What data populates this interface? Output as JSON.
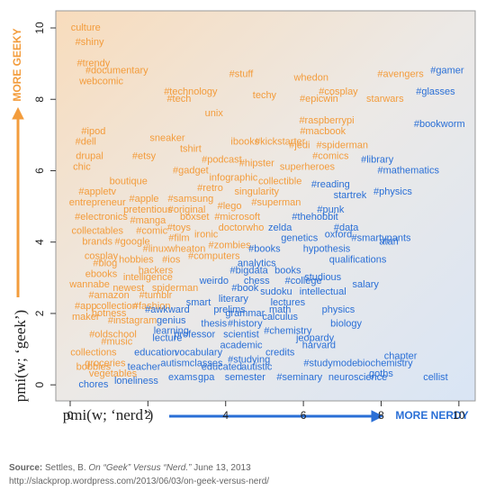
{
  "chart_data": {
    "type": "scatter",
    "ylabel": "pmi(w; ‘geek’)",
    "xlabel": "pmi(w; ‘nerd’)",
    "y_direction": "MORE GEEKY",
    "y_direction_color": "#f39c3c",
    "x_direction": "MORE NERDY",
    "x_direction_color": "#2a6fd6",
    "xlim": [
      -0.37,
      10.42
    ],
    "ylim": [
      -0.45,
      10.48
    ],
    "xticks": [
      0,
      2,
      4,
      6,
      8,
      10
    ],
    "yticks": [
      0,
      2,
      4,
      6,
      8,
      10
    ],
    "series": [
      {
        "color": "#f39c3c",
        "points": [
          {
            "label": "culture",
            "x": 0.4,
            "y": 10.0
          },
          {
            "label": "#shiny",
            "x": 0.5,
            "y": 9.6
          },
          {
            "label": "#trendy",
            "x": 0.6,
            "y": 9.0
          },
          {
            "label": "#documentary",
            "x": 1.2,
            "y": 8.8
          },
          {
            "label": "webcomic",
            "x": 0.8,
            "y": 8.5
          },
          {
            "label": "#stuff",
            "x": 4.4,
            "y": 8.7
          },
          {
            "label": "whedon",
            "x": 6.2,
            "y": 8.6
          },
          {
            "label": "#avengers",
            "x": 8.5,
            "y": 8.7
          },
          {
            "label": "#technology",
            "x": 3.1,
            "y": 8.2
          },
          {
            "label": "#tech",
            "x": 2.8,
            "y": 8.0
          },
          {
            "label": "techy",
            "x": 5.0,
            "y": 8.1
          },
          {
            "label": "#cosplay",
            "x": 6.9,
            "y": 8.2
          },
          {
            "label": "#epicwin",
            "x": 6.4,
            "y": 8.0
          },
          {
            "label": "starwars",
            "x": 8.1,
            "y": 8.0
          },
          {
            "label": "unix",
            "x": 3.7,
            "y": 7.6
          },
          {
            "label": "#raspberrypi",
            "x": 6.6,
            "y": 7.4
          },
          {
            "label": "#macbook",
            "x": 6.5,
            "y": 7.1
          },
          {
            "label": "#ipod",
            "x": 0.6,
            "y": 7.1
          },
          {
            "label": "#dell",
            "x": 0.4,
            "y": 6.8
          },
          {
            "label": "sneaker",
            "x": 2.5,
            "y": 6.9
          },
          {
            "label": "ibooks",
            "x": 4.5,
            "y": 6.8
          },
          {
            "label": "tshirt",
            "x": 3.1,
            "y": 6.6
          },
          {
            "label": "#kickstarter",
            "x": 5.4,
            "y": 6.8
          },
          {
            "label": "#jedi",
            "x": 5.9,
            "y": 6.7
          },
          {
            "label": "#spiderman",
            "x": 7.0,
            "y": 6.7
          },
          {
            "label": "drupal",
            "x": 0.5,
            "y": 6.4
          },
          {
            "label": "#etsy",
            "x": 1.9,
            "y": 6.4
          },
          {
            "label": "#podcast",
            "x": 3.9,
            "y": 6.3
          },
          {
            "label": "#comics",
            "x": 6.7,
            "y": 6.4
          },
          {
            "label": "#hipster",
            "x": 4.8,
            "y": 6.2
          },
          {
            "label": "superheroes",
            "x": 6.1,
            "y": 6.1
          },
          {
            "label": "chic",
            "x": 0.3,
            "y": 6.1
          },
          {
            "label": "#gadget",
            "x": 3.1,
            "y": 6.0
          },
          {
            "label": "boutique",
            "x": 1.5,
            "y": 5.7
          },
          {
            "label": "infographic",
            "x": 4.2,
            "y": 5.8
          },
          {
            "label": "collectible",
            "x": 5.4,
            "y": 5.7
          },
          {
            "label": "#retro",
            "x": 3.6,
            "y": 5.5
          },
          {
            "label": "#appletv",
            "x": 0.7,
            "y": 5.4
          },
          {
            "label": "#apple",
            "x": 1.9,
            "y": 5.2
          },
          {
            "label": "#samsung",
            "x": 3.1,
            "y": 5.2
          },
          {
            "label": "singularity",
            "x": 4.8,
            "y": 5.4
          },
          {
            "label": "#superman",
            "x": 5.3,
            "y": 5.1
          },
          {
            "label": "entrepreneur",
            "x": 0.7,
            "y": 5.1
          },
          {
            "label": "pretentious",
            "x": 2.0,
            "y": 4.9
          },
          {
            "label": "#lego",
            "x": 4.1,
            "y": 5.0
          },
          {
            "label": "#original",
            "x": 3.0,
            "y": 4.9
          },
          {
            "label": "#electronics",
            "x": 0.8,
            "y": 4.7
          },
          {
            "label": "#manga",
            "x": 2.0,
            "y": 4.6
          },
          {
            "label": "boxset",
            "x": 3.2,
            "y": 4.7
          },
          {
            "label": "#microsoft",
            "x": 4.3,
            "y": 4.7
          },
          {
            "label": "#toys",
            "x": 2.8,
            "y": 4.4
          },
          {
            "label": "#comic",
            "x": 2.1,
            "y": 4.3
          },
          {
            "label": "doctorwho",
            "x": 4.4,
            "y": 4.4
          },
          {
            "label": "collectables",
            "x": 0.7,
            "y": 4.3
          },
          {
            "label": "ironic",
            "x": 3.5,
            "y": 4.2
          },
          {
            "label": "#film",
            "x": 2.8,
            "y": 4.1
          },
          {
            "label": "#google",
            "x": 1.6,
            "y": 4.0
          },
          {
            "label": "brands",
            "x": 0.7,
            "y": 4.0
          },
          {
            "label": "#linux",
            "x": 2.2,
            "y": 3.8
          },
          {
            "label": "wheaton",
            "x": 3.0,
            "y": 3.8
          },
          {
            "label": "#zombies",
            "x": 4.1,
            "y": 3.9
          },
          {
            "label": "cosplay",
            "x": 0.8,
            "y": 3.6
          },
          {
            "label": "#ios",
            "x": 2.6,
            "y": 3.5
          },
          {
            "label": "#computers",
            "x": 3.7,
            "y": 3.6
          },
          {
            "label": "#blog",
            "x": 0.9,
            "y": 3.4
          },
          {
            "label": "hobbies",
            "x": 1.7,
            "y": 3.5
          },
          {
            "label": "hackers",
            "x": 2.2,
            "y": 3.2
          },
          {
            "label": "ebooks",
            "x": 0.8,
            "y": 3.1
          },
          {
            "label": "intelligence",
            "x": 2.0,
            "y": 3.0
          },
          {
            "label": "wannabe",
            "x": 0.5,
            "y": 2.8
          },
          {
            "label": "newest",
            "x": 1.5,
            "y": 2.7
          },
          {
            "label": "spiderman",
            "x": 2.7,
            "y": 2.7
          },
          {
            "label": "#amazon",
            "x": 1.0,
            "y": 2.5
          },
          {
            "label": "#tumblr",
            "x": 2.2,
            "y": 2.5
          },
          {
            "label": "#app",
            "x": 0.4,
            "y": 2.2
          },
          {
            "label": "collection",
            "x": 1.2,
            "y": 2.2
          },
          {
            "label": "#fashion",
            "x": 2.1,
            "y": 2.2
          },
          {
            "label": "hotness",
            "x": 1.0,
            "y": 2.0
          },
          {
            "label": "maker",
            "x": 0.4,
            "y": 1.9
          },
          {
            "label": "#instagram",
            "x": 1.6,
            "y": 1.8
          },
          {
            "label": "#oldschool",
            "x": 1.1,
            "y": 1.4
          },
          {
            "label": "#music",
            "x": 1.2,
            "y": 1.2
          },
          {
            "label": "collections",
            "x": 0.6,
            "y": 0.9
          },
          {
            "label": "groceries",
            "x": 0.9,
            "y": 0.6
          },
          {
            "label": "bobbies",
            "x": 0.6,
            "y": 0.5
          },
          {
            "label": "vegetables",
            "x": 1.1,
            "y": 0.3
          }
        ]
      },
      {
        "color": "#2a6fd6",
        "points": [
          {
            "label": "#gamer",
            "x": 9.7,
            "y": 8.8
          },
          {
            "label": "#glasses",
            "x": 9.4,
            "y": 8.2
          },
          {
            "label": "#bookworm",
            "x": 9.5,
            "y": 7.3
          },
          {
            "label": "#library",
            "x": 7.9,
            "y": 6.3
          },
          {
            "label": "#mathematics",
            "x": 8.7,
            "y": 6.0
          },
          {
            "label": "#reading",
            "x": 6.7,
            "y": 5.6
          },
          {
            "label": "#physics",
            "x": 8.3,
            "y": 5.4
          },
          {
            "label": "startrek",
            "x": 7.2,
            "y": 5.3
          },
          {
            "label": "#punk",
            "x": 6.7,
            "y": 4.9
          },
          {
            "label": "#thehobbit",
            "x": 6.3,
            "y": 4.7
          },
          {
            "label": "zelda",
            "x": 5.4,
            "y": 4.4
          },
          {
            "label": "#data",
            "x": 7.1,
            "y": 4.4
          },
          {
            "label": "#smartypants",
            "x": 8.0,
            "y": 4.1
          },
          {
            "label": "genetics",
            "x": 5.9,
            "y": 4.1
          },
          {
            "label": "atari",
            "x": 8.2,
            "y": 4.0
          },
          {
            "label": "oxford",
            "x": 6.9,
            "y": 4.2
          },
          {
            "label": "hypothesis",
            "x": 6.6,
            "y": 3.8
          },
          {
            "label": "#books",
            "x": 5.0,
            "y": 3.8
          },
          {
            "label": "qualifications",
            "x": 7.4,
            "y": 3.5
          },
          {
            "label": "analytics",
            "x": 4.8,
            "y": 3.4
          },
          {
            "label": "#bigdata",
            "x": 4.6,
            "y": 3.2
          },
          {
            "label": "books",
            "x": 5.6,
            "y": 3.2
          },
          {
            "label": "studious",
            "x": 6.5,
            "y": 3.0
          },
          {
            "label": "weirdo",
            "x": 3.7,
            "y": 2.9
          },
          {
            "label": "chess",
            "x": 4.8,
            "y": 2.9
          },
          {
            "label": "#college",
            "x": 6.0,
            "y": 2.9
          },
          {
            "label": "#book",
            "x": 4.5,
            "y": 2.7
          },
          {
            "label": "salary",
            "x": 7.6,
            "y": 2.8
          },
          {
            "label": "sudoku",
            "x": 5.3,
            "y": 2.6
          },
          {
            "label": "intellectual",
            "x": 6.5,
            "y": 2.6
          },
          {
            "label": "literary",
            "x": 4.2,
            "y": 2.4
          },
          {
            "label": "lectures",
            "x": 5.6,
            "y": 2.3
          },
          {
            "label": "smart",
            "x": 3.3,
            "y": 2.3
          },
          {
            "label": "prelims",
            "x": 4.1,
            "y": 2.1
          },
          {
            "label": "#awkward",
            "x": 2.5,
            "y": 2.1
          },
          {
            "label": "grammar",
            "x": 4.5,
            "y": 2.0
          },
          {
            "label": "math",
            "x": 5.4,
            "y": 2.1
          },
          {
            "label": "physics",
            "x": 6.9,
            "y": 2.1
          },
          {
            "label": "calculus",
            "x": 5.4,
            "y": 1.9
          },
          {
            "label": "genius",
            "x": 2.6,
            "y": 1.8
          },
          {
            "label": "thesis",
            "x": 3.7,
            "y": 1.7
          },
          {
            "label": "#history",
            "x": 4.5,
            "y": 1.7
          },
          {
            "label": "#chemistry",
            "x": 5.6,
            "y": 1.5
          },
          {
            "label": "biology",
            "x": 7.1,
            "y": 1.7
          },
          {
            "label": "learning",
            "x": 2.6,
            "y": 1.5
          },
          {
            "label": "scientist",
            "x": 4.4,
            "y": 1.4
          },
          {
            "label": "jeopardy",
            "x": 6.3,
            "y": 1.3
          },
          {
            "label": "professor",
            "x": 3.2,
            "y": 1.4
          },
          {
            "label": "lecture",
            "x": 2.5,
            "y": 1.3
          },
          {
            "label": "harvard",
            "x": 6.4,
            "y": 1.1
          },
          {
            "label": "academic",
            "x": 4.4,
            "y": 1.1
          },
          {
            "label": "credits",
            "x": 5.4,
            "y": 0.9
          },
          {
            "label": "education",
            "x": 2.2,
            "y": 0.9
          },
          {
            "label": "vocabulary",
            "x": 3.3,
            "y": 0.9
          },
          {
            "label": "#studying",
            "x": 4.6,
            "y": 0.7
          },
          {
            "label": "chapter",
            "x": 8.5,
            "y": 0.8
          },
          {
            "label": "teacher",
            "x": 1.9,
            "y": 0.5
          },
          {
            "label": "autism",
            "x": 2.7,
            "y": 0.6
          },
          {
            "label": "classes",
            "x": 3.5,
            "y": 0.6
          },
          {
            "label": "educated",
            "x": 3.9,
            "y": 0.5
          },
          {
            "label": "autistic",
            "x": 4.8,
            "y": 0.5
          },
          {
            "label": "#studymode",
            "x": 6.7,
            "y": 0.6
          },
          {
            "label": "biochemistry",
            "x": 8.1,
            "y": 0.6
          },
          {
            "label": "goths",
            "x": 8.0,
            "y": 0.3
          },
          {
            "label": "chores",
            "x": 0.6,
            "y": 0.0
          },
          {
            "label": "loneliness",
            "x": 1.7,
            "y": 0.1
          },
          {
            "label": "exams",
            "x": 2.9,
            "y": 0.2
          },
          {
            "label": "gpa",
            "x": 3.5,
            "y": 0.2
          },
          {
            "label": "semester",
            "x": 4.5,
            "y": 0.2
          },
          {
            "label": "#seminary",
            "x": 5.9,
            "y": 0.2
          },
          {
            "label": "neuroscience",
            "x": 7.4,
            "y": 0.2
          },
          {
            "label": "cellist",
            "x": 9.4,
            "y": 0.2
          }
        ]
      }
    ]
  },
  "footer": {
    "source_label": "Source:",
    "author": "Settles, B.",
    "title": "On “Geek” Versus “Nerd.”",
    "date": "June 13, 2013",
    "url": "http://slackprop.wordpress.com/2013/06/03/on-geek-versus-nerd/"
  }
}
